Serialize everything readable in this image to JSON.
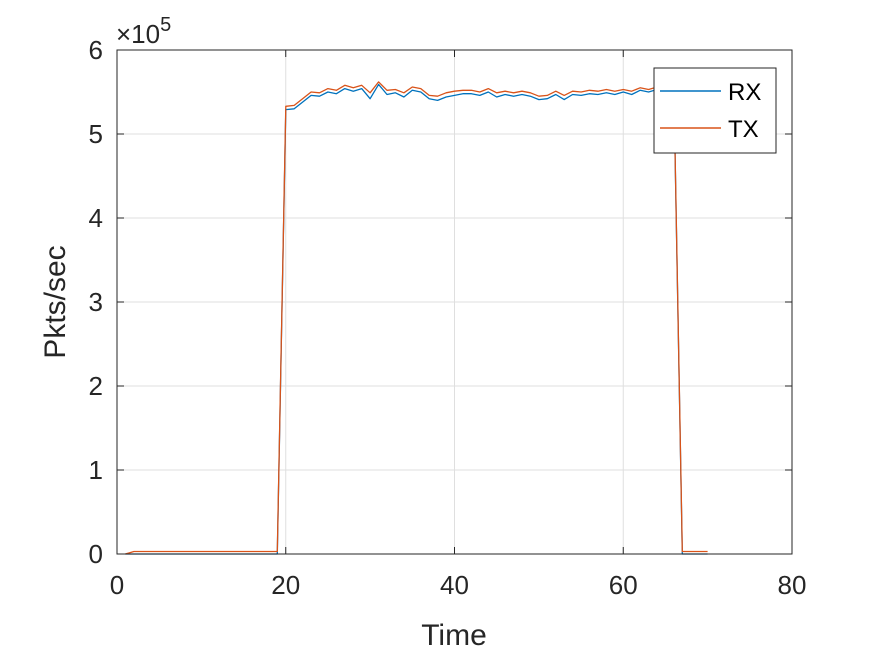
{
  "chart_data": {
    "type": "line",
    "title": "",
    "xlabel": "Time",
    "ylabel": "Pkts/sec",
    "xlim": [
      0,
      80
    ],
    "ylim": [
      0,
      6
    ],
    "y_exponent_label": "×10",
    "y_exponent": "5",
    "x_ticks": [
      "0",
      "20",
      "40",
      "60",
      "80"
    ],
    "y_ticks": [
      "0",
      "1",
      "2",
      "3",
      "4",
      "5",
      "6"
    ],
    "grid": true,
    "legend_position": "top-right",
    "series": [
      {
        "name": "RX",
        "color": "#0072BD",
        "x": [
          1,
          2,
          3,
          4,
          5,
          6,
          7,
          8,
          9,
          10,
          11,
          12,
          13,
          14,
          15,
          16,
          17,
          18,
          19,
          20,
          21,
          22,
          23,
          24,
          25,
          26,
          27,
          28,
          29,
          30,
          31,
          32,
          33,
          34,
          35,
          36,
          37,
          38,
          39,
          40,
          41,
          42,
          43,
          44,
          45,
          46,
          47,
          48,
          49,
          50,
          51,
          52,
          53,
          54,
          55,
          56,
          57,
          58,
          59,
          60,
          61,
          62,
          63,
          64,
          65,
          66,
          67,
          68,
          69,
          70
        ],
        "values": [
          0,
          0,
          0,
          0,
          0,
          0,
          0,
          0,
          0,
          0,
          0,
          0,
          0,
          0,
          0,
          0,
          0,
          0,
          0,
          5.29,
          5.3,
          5.38,
          5.46,
          5.45,
          5.5,
          5.48,
          5.54,
          5.51,
          5.54,
          5.42,
          5.59,
          5.47,
          5.49,
          5.44,
          5.52,
          5.5,
          5.42,
          5.4,
          5.44,
          5.46,
          5.48,
          5.48,
          5.46,
          5.5,
          5.44,
          5.47,
          5.45,
          5.47,
          5.45,
          5.41,
          5.42,
          5.47,
          5.41,
          5.47,
          5.46,
          5.48,
          5.47,
          5.49,
          5.47,
          5.5,
          5.47,
          5.52,
          5.5,
          5.53,
          5.52,
          5.52,
          0,
          0,
          0,
          0
        ]
      },
      {
        "name": "TX",
        "color": "#D95319",
        "x": [
          1,
          2,
          3,
          4,
          5,
          6,
          7,
          8,
          9,
          10,
          11,
          12,
          13,
          14,
          15,
          16,
          17,
          18,
          19,
          20,
          21,
          22,
          23,
          24,
          25,
          26,
          27,
          28,
          29,
          30,
          31,
          32,
          33,
          34,
          35,
          36,
          37,
          38,
          39,
          40,
          41,
          42,
          43,
          44,
          45,
          46,
          47,
          48,
          49,
          50,
          51,
          52,
          53,
          54,
          55,
          56,
          57,
          58,
          59,
          60,
          61,
          62,
          63,
          64,
          65,
          66,
          67,
          68,
          69,
          70
        ],
        "values": [
          0,
          0.03,
          0.03,
          0.03,
          0.03,
          0.03,
          0.03,
          0.03,
          0.03,
          0.03,
          0.03,
          0.03,
          0.03,
          0.03,
          0.03,
          0.03,
          0.03,
          0.03,
          0.03,
          5.33,
          5.34,
          5.42,
          5.5,
          5.49,
          5.54,
          5.52,
          5.58,
          5.55,
          5.58,
          5.49,
          5.62,
          5.52,
          5.53,
          5.49,
          5.56,
          5.54,
          5.46,
          5.45,
          5.49,
          5.51,
          5.52,
          5.52,
          5.5,
          5.54,
          5.49,
          5.51,
          5.49,
          5.51,
          5.49,
          5.45,
          5.46,
          5.51,
          5.46,
          5.51,
          5.5,
          5.52,
          5.51,
          5.53,
          5.51,
          5.53,
          5.51,
          5.55,
          5.53,
          5.56,
          5.55,
          5.55,
          0.03,
          0.03,
          0.03,
          0.03
        ]
      }
    ]
  }
}
